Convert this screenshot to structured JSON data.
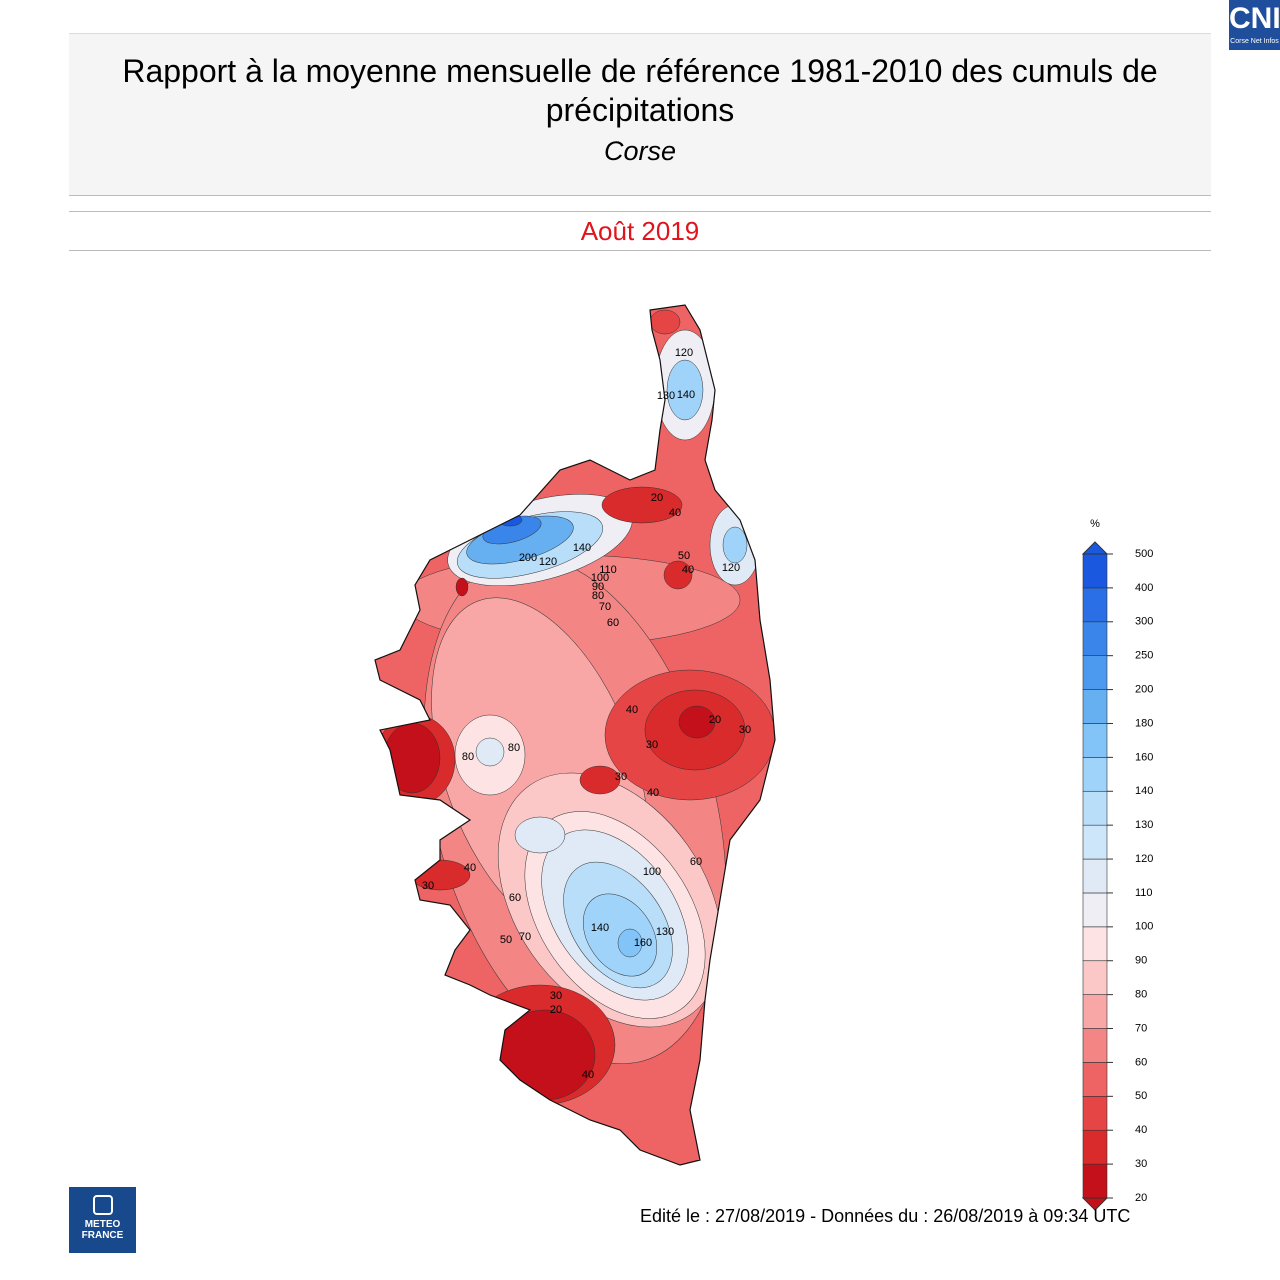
{
  "header": {
    "title": "Rapport à la moyenne mensuelle de référence 1981-2010 des cumuls de précipitations",
    "region": "Corse",
    "period": "Août 2019"
  },
  "legend": {
    "unit": "%",
    "levels": [
      20,
      30,
      40,
      50,
      60,
      70,
      80,
      90,
      100,
      110,
      120,
      130,
      140,
      160,
      180,
      200,
      250,
      300,
      400,
      500
    ],
    "colors": [
      "#c4101a",
      "#d92a2c",
      "#e64546",
      "#ee6363",
      "#f38585",
      "#f8a6a6",
      "#fbc7c7",
      "#fde3e3",
      "#eeeef4",
      "#e0eaf6",
      "#cde6fa",
      "#b9defa",
      "#a0d3fa",
      "#82c3f8",
      "#66b0f2",
      "#4c9af0",
      "#3a85ea",
      "#2a6fe6",
      "#1a58e0"
    ]
  },
  "map": {
    "contour_labels": [
      20,
      40,
      50,
      40,
      110,
      100,
      90,
      80,
      70,
      60,
      200,
      120,
      140,
      40,
      20,
      30,
      30,
      80,
      80,
      30,
      40,
      60,
      100,
      40,
      30,
      60,
      140,
      160,
      130,
      50,
      70,
      30,
      20,
      40,
      120,
      140,
      130,
      120
    ]
  },
  "footer": {
    "edition": "Edité le : 27/08/2019 - Données du : 26/08/2019 à 09:34 UTC",
    "logo_line1": "METEO",
    "logo_line2": "FRANCE"
  },
  "badge": {
    "short": "CNI",
    "long": "Corse Net Infos"
  }
}
